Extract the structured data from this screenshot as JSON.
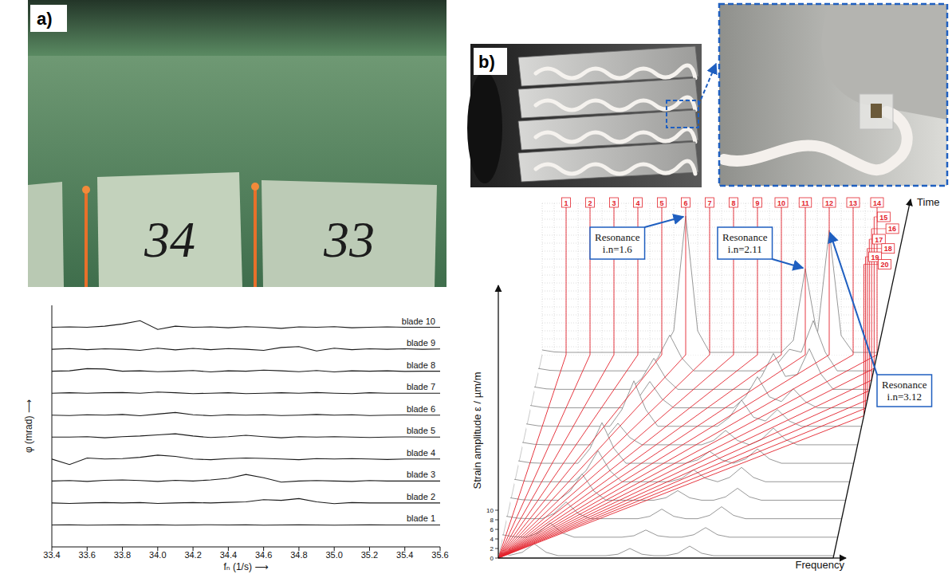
{
  "panels": {
    "a": {
      "label": "a)",
      "photo_texts": [
        "34",
        "33"
      ]
    },
    "b": {
      "label": "b)"
    }
  },
  "chart_data": [
    {
      "type": "line",
      "x_label": "fₙ (1/s) ⟶",
      "y_label": "φ (mrad) ⟶",
      "color": "#1a1a1a",
      "tick_labels": "x",
      "xlim": [
        33.4,
        35.6
      ],
      "xticks": [
        33.4,
        33.6,
        33.8,
        {
          "value": 34,
          "label": "34.0"
        },
        34.2,
        34.4,
        34.6,
        34.8,
        {
          "value": 35,
          "label": "35.0"
        },
        35.2,
        35.4,
        35.6
      ],
      "ylim": [
        0,
        11
      ],
      "x": [
        33.4,
        33.5,
        33.6,
        33.7,
        33.8,
        33.9,
        34.0,
        34.1,
        34.2,
        34.3,
        34.4,
        34.5,
        34.6,
        34.7,
        34.8,
        34.9,
        35.0,
        35.1,
        35.2,
        35.3,
        35.4,
        35.5,
        35.6
      ],
      "series": [
        {
          "name": "blade 10",
          "values": [
            10,
            10.02,
            10,
            10.05,
            10.15,
            10.3,
            9.9,
            10.05,
            10,
            10.02,
            9.98,
            10.03,
            10,
            9.95,
            10.02,
            10,
            10.03,
            9.98,
            10,
            10.02,
            10,
            10,
            10
          ]
        },
        {
          "name": "blade 9",
          "values": [
            9,
            9.03,
            8.98,
            9.02,
            9,
            8.95,
            9.05,
            8.97,
            9.04,
            8.98,
            9.03,
            9,
            8.95,
            9.08,
            9.12,
            8.92,
            9.05,
            8.98,
            9.02,
            9,
            9.02,
            9,
            9.01
          ]
        },
        {
          "name": "blade 8",
          "values": [
            8,
            8.02,
            8.12,
            8.1,
            8,
            8.02,
            7.98,
            8,
            8.03,
            7.97,
            8.02,
            8,
            8.05,
            8.02,
            7.98,
            8.03,
            7.97,
            8.02,
            8,
            8.02,
            7.99,
            8,
            8
          ]
        },
        {
          "name": "blade 7",
          "values": [
            7,
            7.02,
            7,
            7.02,
            7.03,
            7,
            7.05,
            7.02,
            6.98,
            7,
            7.02,
            6.98,
            7,
            7.02,
            7,
            7.03,
            7,
            6.98,
            7.02,
            7,
            7,
            7,
            7
          ]
        },
        {
          "name": "blade 6",
          "values": [
            6,
            5.98,
            6.02,
            6,
            6.03,
            5.97,
            6.05,
            6.12,
            6.02,
            5.97,
            6.02,
            6,
            6.02,
            5.98,
            6,
            6.03,
            6,
            6.02,
            5.98,
            6,
            6.01,
            6,
            6
          ]
        },
        {
          "name": "blade 5",
          "values": [
            5,
            5,
            5.02,
            4.97,
            5.02,
            5.05,
            5.1,
            5.15,
            5.05,
            4.98,
            5.02,
            5.08,
            5.02,
            4.97,
            5.02,
            5,
            5.02,
            5,
            4.98,
            5,
            5.01,
            5,
            5
          ]
        },
        {
          "name": "blade 4",
          "values": [
            4,
            3.75,
            4.05,
            4,
            4.02,
            4.08,
            4.18,
            4.12,
            4,
            3.97,
            4.02,
            4.05,
            4.03,
            4,
            3.97,
            4.02,
            4,
            4.02,
            4,
            3.98,
            4,
            4,
            4
          ]
        },
        {
          "name": "blade 3",
          "values": [
            3,
            3.02,
            2.98,
            3.03,
            3.05,
            3.02,
            2.98,
            3.03,
            3,
            3.05,
            3.12,
            3.3,
            3.15,
            2.95,
            3,
            3.02,
            3,
            2.98,
            3.02,
            3,
            3,
            3,
            3
          ]
        },
        {
          "name": "blade 2",
          "values": [
            2,
            1.98,
            2,
            2.02,
            2,
            2.02,
            1.98,
            2,
            2.02,
            2,
            2.03,
            2.05,
            2.15,
            2.12,
            2.2,
            2.05,
            1.97,
            2.02,
            2,
            2,
            2,
            2,
            2
          ]
        },
        {
          "name": "blade 1",
          "values": [
            1,
            1.01,
            0.99,
            1,
            1.01,
            1,
            1.01,
            0.99,
            1,
            1.01,
            1,
            1.01,
            0.99,
            1,
            1.01,
            1,
            0.99,
            1,
            1.01,
            1,
            1,
            1,
            1
          ]
        }
      ]
    },
    {
      "type": "waterfall",
      "x_label": "Frequency",
      "y_label": "Strain amplitude ε / µm/m",
      "z_label": "Time",
      "color": "#8c8c8c",
      "tick_labels": "y",
      "xlim": [
        0,
        112
      ],
      "ylim": [
        0,
        55
      ],
      "yticks": [
        0,
        2,
        4,
        6,
        8,
        10
      ],
      "zlim": [
        0,
        11
      ],
      "speed_range": [
        0,
        8
      ],
      "order_lines": {
        "values": [
          1,
          2,
          3,
          4,
          5,
          6,
          7,
          8,
          9,
          10,
          11,
          12,
          13,
          14,
          15,
          16,
          17,
          18,
          19,
          20
        ],
        "color": "#e3232c"
      },
      "x": [
        0,
        4,
        8,
        12,
        16,
        20,
        24,
        28,
        32,
        36,
        40,
        44,
        48,
        52,
        56,
        60,
        64,
        68,
        72,
        76,
        80,
        84,
        88,
        92,
        96,
        100,
        104,
        108,
        112
      ],
      "series": [
        {
          "time": 0,
          "values": [
            1.0,
            0.6,
            1.2,
            3,
            1.2,
            0.5,
            0.5,
            0.5,
            0.5,
            0.5,
            0.8,
            2,
            0.8,
            0.5,
            0.5,
            1,
            2.5,
            1,
            0.5,
            0.5,
            0.5,
            0.5,
            0.5,
            0.5,
            0.5,
            0.5,
            0.5,
            0.5,
            0.5
          ]
        },
        {
          "time": 1,
          "values": [
            1.0,
            0.6,
            0.5,
            1.4,
            3.5,
            1.4,
            0.5,
            0.5,
            0.5,
            0.5,
            0.5,
            0.8,
            2,
            0.8,
            0.5,
            0.5,
            1,
            2.5,
            1,
            0.5,
            0.5,
            0.5,
            0.5,
            0.5,
            0.5,
            0.5,
            0.5,
            0.5,
            0.5
          ]
        },
        {
          "time": 2,
          "values": [
            1.0,
            0.6,
            0.5,
            0.5,
            1.6,
            4,
            1.6,
            0.5,
            0.5,
            0.5,
            0.5,
            0.5,
            1,
            2.5,
            1,
            0.5,
            0.5,
            1.2,
            3,
            1.2,
            0.5,
            0.5,
            0.5,
            0.5,
            0.5,
            0.5,
            0.5,
            0.5,
            0.5
          ]
        },
        {
          "time": 3,
          "values": [
            1.0,
            0.6,
            0.5,
            0.5,
            0.5,
            2.4,
            6,
            2.4,
            0.5,
            0.5,
            0.5,
            0.5,
            0.5,
            1,
            2.5,
            1,
            0.5,
            0.5,
            1.2,
            3,
            1.2,
            0.5,
            0.5,
            0.5,
            0.5,
            0.5,
            0.5,
            0.5,
            0.5
          ]
        },
        {
          "time": 4,
          "values": [
            1.0,
            0.6,
            0.5,
            0.5,
            0.5,
            0.5,
            2.8,
            7,
            2.8,
            0.5,
            0.5,
            0.5,
            0.5,
            0.5,
            1.2,
            3,
            1.2,
            0.5,
            1.4,
            3.5,
            1.4,
            0.5,
            0.5,
            0.5,
            0.5,
            0.5,
            0.5,
            0.5,
            0.5
          ]
        },
        {
          "time": 5,
          "values": [
            1.0,
            0.6,
            0.5,
            0.5,
            0.5,
            0.5,
            3.6,
            9,
            3.6,
            0.5,
            0.5,
            0.5,
            0.5,
            0.5,
            0.5,
            1.2,
            3,
            1.2,
            0.5,
            1.4,
            3.5,
            1.4,
            0.5,
            0.5,
            0.5,
            0.5,
            0.5,
            0.5,
            0.5
          ]
        },
        {
          "time": 6,
          "values": [
            1.0,
            0.6,
            0.5,
            0.5,
            0.5,
            0.5,
            0.5,
            2,
            5,
            2,
            0.5,
            0.5,
            0.5,
            0.5,
            0.5,
            0.5,
            1.4,
            3.5,
            1.4,
            0.5,
            1.6,
            4,
            1.6,
            0.5,
            0.5,
            0.5,
            0.5,
            0.5,
            0.5
          ]
        },
        {
          "time": 7,
          "values": [
            1.0,
            0.6,
            0.5,
            0.5,
            0.5,
            0.5,
            0.5,
            0.5,
            4,
            10,
            4,
            0.5,
            0.5,
            0.5,
            0.5,
            0.5,
            0.5,
            2.4,
            6,
            2.4,
            1.6,
            4,
            1.6,
            0.5,
            0.5,
            0.5,
            0.5,
            0.5,
            0.5
          ]
        },
        {
          "time": 8,
          "values": [
            1.0,
            0.6,
            0.5,
            0.5,
            0.5,
            0.5,
            0.5,
            0.5,
            0.5,
            2.4,
            6,
            2.4,
            0.5,
            0.5,
            0.5,
            0.5,
            0.5,
            0.5,
            2.8,
            7,
            2.8,
            1.8,
            4.5,
            1.8,
            0.5,
            0.5,
            0.5,
            0.5,
            0.5
          ]
        },
        {
          "time": 9,
          "values": [
            1.0,
            0.6,
            0.5,
            0.5,
            0.5,
            0.5,
            0.5,
            0.5,
            0.5,
            2.8,
            7,
            2.8,
            0.5,
            0.5,
            0.5,
            0.5,
            0.5,
            0.5,
            0.5,
            3.2,
            8,
            3.2,
            3.6,
            9,
            3.6,
            0.5,
            0.5,
            0.5,
            0.5
          ]
        },
        {
          "time": 10,
          "values": [
            1.0,
            0.6,
            0.5,
            0.5,
            0.5,
            0.5,
            0.5,
            0.5,
            0.5,
            0.5,
            3.2,
            8,
            3.2,
            0.5,
            0.5,
            0.5,
            0.5,
            0.5,
            0.5,
            0.5,
            2,
            5,
            4.4,
            11,
            4.4,
            0.5,
            0.5,
            0.5,
            0.5
          ]
        },
        {
          "time": 11,
          "values": [
            1.0,
            0.6,
            0.5,
            0.5,
            0.5,
            0.5,
            0.5,
            0.5,
            0.5,
            0.5,
            0.5,
            5,
            29,
            5,
            0.5,
            0.5,
            0.5,
            0.5,
            0.5,
            0.5,
            0.5,
            3,
            18,
            4,
            26,
            4,
            0.5,
            0.5,
            0.5
          ]
        }
      ],
      "annotations": [
        {
          "text": "Resonance i.n=1.6",
          "x": 48,
          "time": 11
        },
        {
          "text": "Resonance i.n=2.11",
          "x": 88,
          "time": 11
        },
        {
          "text": "Resonance i.n=3.12",
          "x": 96,
          "time": 11
        }
      ]
    }
  ]
}
